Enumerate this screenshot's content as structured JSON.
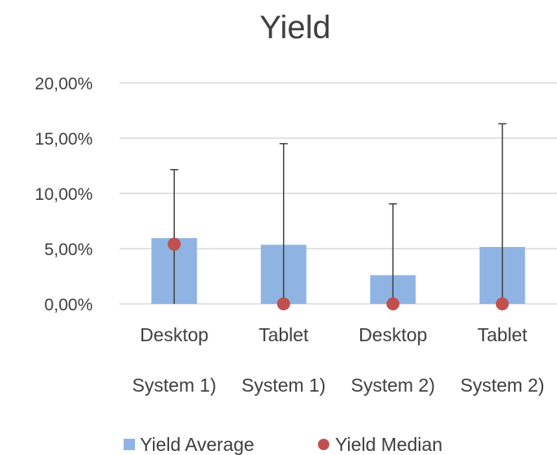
{
  "chart_data": {
    "type": "bar",
    "title": "Yield",
    "categories_line1": [
      "Desktop",
      "Tablet",
      "Desktop",
      "Tablet"
    ],
    "categories_line2": [
      "System 1)",
      "System 1)",
      "System 2)",
      "System 2)"
    ],
    "series": [
      {
        "name": "Yield Average",
        "type": "bar",
        "values": [
          5.95,
          5.35,
          2.6,
          5.15
        ],
        "error_plus": [
          6.2,
          9.15,
          6.45,
          11.15
        ],
        "error_minus": [
          5.95,
          5.35,
          2.6,
          5.15
        ],
        "color": "#8fb4e3"
      },
      {
        "name": "Yield Median",
        "type": "scatter",
        "values": [
          5.4,
          0,
          0,
          0
        ],
        "color": "#c0504d"
      }
    ],
    "ylim": [
      0,
      20
    ],
    "yticks": [
      0,
      5,
      10,
      15,
      20
    ],
    "ytick_labels": [
      "0,00%",
      "5,00%",
      "10,00%",
      "15,00%",
      "20,00%"
    ],
    "grid": true,
    "legend": "bottom",
    "gridline_color": "#d9d9d9",
    "error_bar_color": "#404040"
  }
}
